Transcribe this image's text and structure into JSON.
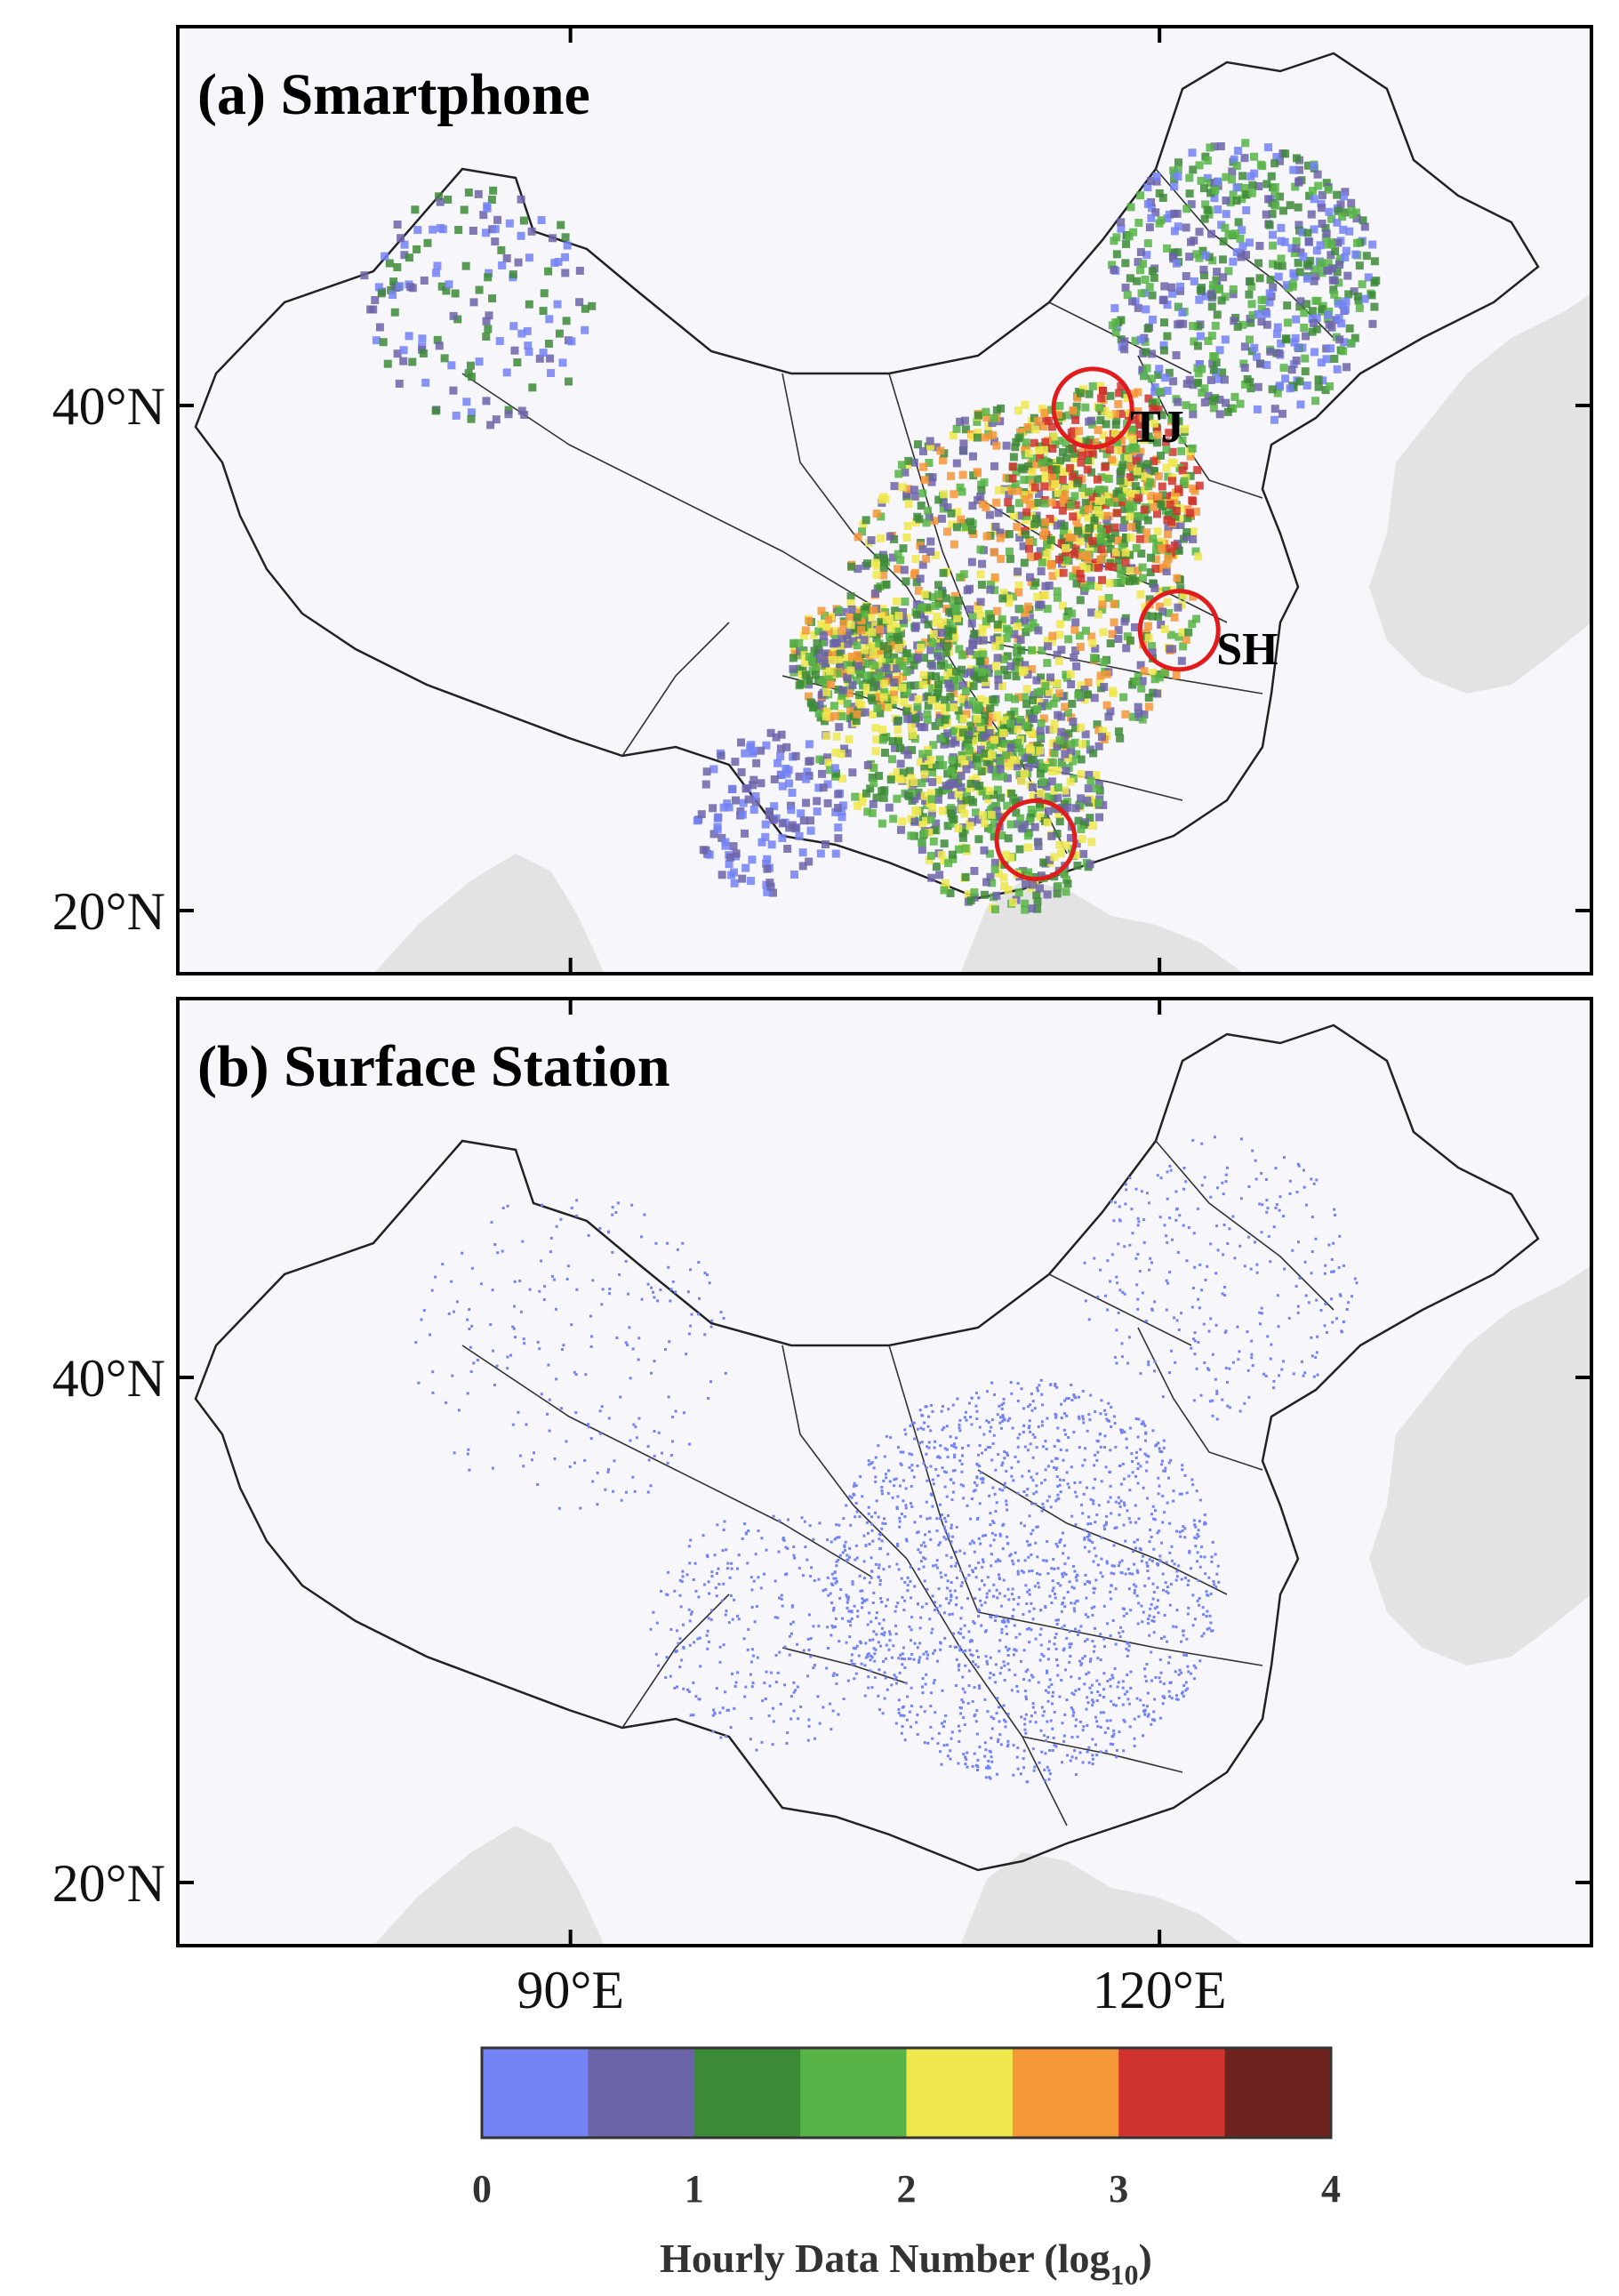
{
  "panels": [
    {
      "id": "a",
      "title": "(a) Smartphone",
      "annotations": [
        {
          "label": "TJ",
          "lon": 116.6,
          "lat": 39.9
        },
        {
          "label": "SH",
          "lon": 121.0,
          "lat": 31.1
        },
        {
          "label": "",
          "lon": 113.7,
          "lat": 22.8
        }
      ]
    },
    {
      "id": "b",
      "title": "(b) Surface Station",
      "annotations": []
    }
  ],
  "axes": {
    "lon_range": [
      70,
      142
    ],
    "lat_range": [
      17.5,
      55
    ],
    "lat_ticks": [
      {
        "value": 40,
        "label": "40°N"
      },
      {
        "value": 20,
        "label": "20°N"
      }
    ],
    "lon_ticks": [
      {
        "value": 90,
        "label": "90°E"
      },
      {
        "value": 120,
        "label": "120°E"
      }
    ]
  },
  "colorbar": {
    "title_main": "Hourly Data Number (log",
    "title_sub": "10",
    "title_close": ")",
    "ticks": [
      {
        "value": 0,
        "label": "0"
      },
      {
        "value": 1,
        "label": "1"
      },
      {
        "value": 2,
        "label": "2"
      },
      {
        "value": 3,
        "label": "3"
      },
      {
        "value": 4,
        "label": "4"
      }
    ],
    "range": [
      0,
      4
    ],
    "colors": [
      "#7383f4",
      "#6c64a8",
      "#3d8a36",
      "#58b447",
      "#efe84c",
      "#f59737",
      "#d0332d",
      "#6e231f"
    ]
  },
  "style": {
    "ocean": "#f6f6fb",
    "land_outside": "#e3e3e3",
    "border": "#222222",
    "circle": "#e01c1c"
  }
}
